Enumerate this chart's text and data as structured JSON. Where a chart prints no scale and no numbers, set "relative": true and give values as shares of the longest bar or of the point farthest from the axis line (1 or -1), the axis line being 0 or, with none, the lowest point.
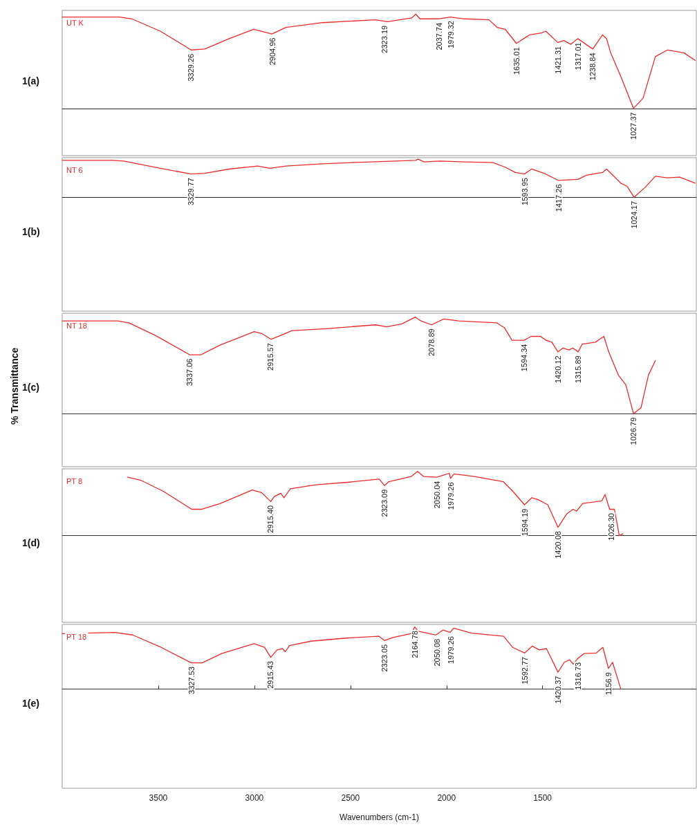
{
  "chart_data": [
    {
      "type": "line",
      "ylabel": "1(a)",
      "relative": true,
      "tick_labels": false,
      "marker": "none",
      "xlim": [
        4000,
        700
      ],
      "series": [
        {
          "name": "UT K",
          "color": "#ee2a2a",
          "x": [
            4000,
            3701,
            3638,
            3490,
            3329,
            3258,
            3131,
            3004,
            2909,
            2835,
            2645,
            2371,
            2307,
            2181,
            2160,
            2138,
            2043,
            1980,
            1906,
            1779,
            1737,
            1695,
            1636,
            1568,
            1505,
            1484,
            1421,
            1389,
            1353,
            1317,
            1239,
            1188,
            1167,
            1146,
            1093,
            1027,
            977,
            913,
            850,
            765,
            706
          ],
          "values": [
            0.97,
            0.97,
            0.95,
            0.82,
            0.62,
            0.63,
            0.74,
            0.84,
            0.79,
            0.86,
            0.91,
            0.94,
            0.92,
            0.96,
            1,
            0.95,
            0.95,
            0.97,
            0.95,
            0.94,
            0.86,
            0.84,
            0.69,
            0.78,
            0.8,
            0.82,
            0.7,
            0.72,
            0.68,
            0.74,
            0.63,
            0.78,
            0.74,
            0.59,
            0.34,
            0,
            0.11,
            0.55,
            0.62,
            0.59,
            0.51
          ]
        }
      ],
      "annotations": [
        {
          "text": "3329.26",
          "x": 3329.26,
          "y": 0.62
        },
        {
          "text": "2904.96",
          "x": 2904.96,
          "y": 0.79
        },
        {
          "text": "2323.19",
          "x": 2323.19,
          "y": 0.92
        },
        {
          "text": "2037.74",
          "x": 2037.74,
          "y": 0.95
        },
        {
          "text": "1979.32",
          "x": 1979.32,
          "y": 0.97
        },
        {
          "text": "1635.01",
          "x": 1635.01,
          "y": 0.69
        },
        {
          "text": "1421.31",
          "x": 1421.31,
          "y": 0.7
        },
        {
          "text": "1317.01",
          "x": 1317.01,
          "y": 0.74
        },
        {
          "text": "1238.84",
          "x": 1238.84,
          "y": 0.63
        },
        {
          "text": "1027.37",
          "x": 1027.37,
          "y": 0
        }
      ]
    },
    {
      "type": "line",
      "ylabel": "1(b)",
      "relative": true,
      "tick_labels": false,
      "marker": "none",
      "xlim": [
        4000,
        700
      ],
      "series": [
        {
          "name": "NT 6",
          "color": "#ee2a2a",
          "x": [
            4000,
            3743,
            3680,
            3490,
            3330,
            3258,
            3131,
            2983,
            2920,
            2835,
            2645,
            2392,
            2160,
            2148,
            2117,
            2033,
            1906,
            1758,
            1695,
            1642,
            1594,
            1557,
            1493,
            1417,
            1315,
            1272,
            1188,
            1167,
            1135,
            1093,
            1061,
            1024,
            966,
            913,
            850,
            787,
            706
          ],
          "values": [
            0.97,
            0.97,
            0.95,
            0.76,
            0.61,
            0.63,
            0.74,
            0.82,
            0.76,
            0.82,
            0.88,
            0.93,
            0.97,
            1,
            0.93,
            0.95,
            0.93,
            0.91,
            0.79,
            0.65,
            0.61,
            0.74,
            0.63,
            0.44,
            0.47,
            0.58,
            0.65,
            0.74,
            0.58,
            0.37,
            0.29,
            0,
            0.26,
            0.55,
            0.51,
            0.53,
            0.37
          ]
        }
      ],
      "annotations": [
        {
          "text": "3329.77",
          "x": 3329.77,
          "y": 0.61
        },
        {
          "text": "1593.95",
          "x": 1593.95,
          "y": 0.61
        },
        {
          "text": "1417.26",
          "x": 1417.26,
          "y": 0.44
        },
        {
          "text": "1024.17",
          "x": 1024.17,
          "y": 0
        }
      ]
    },
    {
      "type": "line",
      "ylabel": "1(c)",
      "relative": true,
      "tick_labels": false,
      "marker": "none",
      "xlim": [
        4000,
        700
      ],
      "series": [
        {
          "name": "NT 18",
          "color": "#ee2a2a",
          "x": [
            4000,
            3712,
            3653,
            3515,
            3337,
            3278,
            3179,
            3001,
            2962,
            2913,
            2863,
            2804,
            2626,
            2370,
            2311,
            2232,
            2163,
            2133,
            2078,
            2015,
            1936,
            1738,
            1699,
            1659,
            1596,
            1560,
            1511,
            1481,
            1452,
            1420,
            1393,
            1363,
            1343,
            1315,
            1294,
            1225,
            1181,
            1156,
            1106,
            1067,
            1027,
            988,
            949,
            913
          ],
          "values": [
            0.96,
            0.96,
            0.94,
            0.81,
            0.61,
            0.61,
            0.71,
            0.85,
            0.83,
            0.77,
            0.81,
            0.86,
            0.88,
            0.92,
            0.9,
            0.93,
            1,
            0.96,
            0.92,
            0.98,
            0.96,
            0.94,
            0.89,
            0.76,
            0.76,
            0.8,
            0.8,
            0.76,
            0.74,
            0.64,
            0.68,
            0.66,
            0.68,
            0.64,
            0.72,
            0.74,
            0.8,
            0.64,
            0.4,
            0.3,
            0,
            0.06,
            0.4,
            0.55
          ]
        }
      ],
      "annotations": [
        {
          "text": "3337.06",
          "x": 3337.06,
          "y": 0.61
        },
        {
          "text": "2915.57",
          "x": 2915.57,
          "y": 0.77
        },
        {
          "text": "2078.89",
          "x": 2078.89,
          "y": 0.92
        },
        {
          "text": "1594.34",
          "x": 1594.34,
          "y": 0.76
        },
        {
          "text": "1420.12",
          "x": 1420.12,
          "y": 0.64
        },
        {
          "text": "1315.89",
          "x": 1315.89,
          "y": 0.64
        },
        {
          "text": "1026.79",
          "x": 1026.79,
          "y": 0
        },
        "% Transmittance"
      ]
    },
    {
      "type": "line",
      "ylabel": "1(d)",
      "relative": true,
      "tick_labels": false,
      "marker": "none",
      "xlim": [
        4000,
        700
      ],
      "series": [
        {
          "name": "PT 8",
          "color": "#ee2a2a",
          "x": [
            3660,
            3590,
            3474,
            3326,
            3276,
            3177,
            3011,
            2962,
            2915,
            2896,
            2862,
            2846,
            2813,
            2681,
            2515,
            2350,
            2323,
            2300,
            2184,
            2151,
            2118,
            2050,
            2019,
            1986,
            1979,
            1961,
            1854,
            1705,
            1655,
            1594,
            1556,
            1523,
            1473,
            1420,
            1374,
            1341,
            1324,
            1291,
            1192,
            1175,
            1151,
            1126,
            1101,
            1082
          ],
          "values": [
            0.91,
            0.86,
            0.69,
            0.41,
            0.41,
            0.5,
            0.71,
            0.67,
            0.53,
            0.61,
            0.66,
            0.59,
            0.73,
            0.79,
            0.83,
            0.88,
            0.78,
            0.84,
            0.92,
            1,
            0.92,
            0.91,
            0.94,
            0.97,
            0.89,
            0.96,
            0.92,
            0.84,
            0.69,
            0.48,
            0.59,
            0.56,
            0.48,
            0.13,
            0.34,
            0.41,
            0.38,
            0.5,
            0.54,
            0.64,
            0.41,
            0.41,
            0,
            0.03
          ]
        }
      ],
      "annotations": [
        {
          "text": "2915.40",
          "x": 2915.4,
          "y": 0.53
        },
        {
          "text": "2323.09",
          "x": 2323.09,
          "y": 0.78
        },
        {
          "text": "2050.04",
          "x": 2050.04,
          "y": 0.91
        },
        {
          "text": "1979.26",
          "x": 1979.26,
          "y": 0.89
        },
        {
          "text": "1594.19",
          "x": 1594.19,
          "y": 0.48
        },
        {
          "text": "1420.08",
          "x": 1420.08,
          "y": 0.13
        },
        {
          "text": "1026.30",
          "x": 1142,
          "y": 0.41
        }
      ]
    },
    {
      "type": "line",
      "ylabel": "1(e)",
      "xlabel": "Wavenumbers (cm-1)",
      "relative": true,
      "tick_labels": "x",
      "marker": "none",
      "xlim": [
        4000,
        700
      ],
      "xticks": [
        3500,
        3000,
        2500,
        2000,
        1500
      ],
      "series": [
        {
          "name": "PT 18",
          "color": "#ee2a2a",
          "x": [
            4000,
            3727,
            3634,
            3485,
            3328,
            3272,
            3170,
            3002,
            2947,
            2915,
            2882,
            2854,
            2839,
            2817,
            2705,
            2520,
            2353,
            2323,
            2278,
            2185,
            2165,
            2148,
            2055,
            2018,
            1981,
            1963,
            1870,
            1703,
            1656,
            1593,
            1554,
            1517,
            1480,
            1420,
            1387,
            1359,
            1341,
            1317,
            1285,
            1220,
            1186,
            1157,
            1136,
            1093
          ],
          "values": [
            0.89,
            0.91,
            0.87,
            0.67,
            0.42,
            0.42,
            0.57,
            0.73,
            0.67,
            0.51,
            0.63,
            0.65,
            0.6,
            0.7,
            0.77,
            0.82,
            0.85,
            0.78,
            0.83,
            0.89,
            1,
            0.93,
            0.87,
            0.95,
            0.91,
            0.98,
            0.9,
            0.85,
            0.67,
            0.58,
            0.69,
            0.63,
            0.65,
            0.27,
            0.43,
            0.47,
            0.4,
            0.49,
            0.57,
            0.58,
            0.67,
            0.33,
            0.43,
            0
          ]
        }
      ],
      "annotations": [
        {
          "text": "3327.53",
          "x": 3327.53,
          "y": 0.42
        },
        {
          "text": "2915.43",
          "x": 2915.43,
          "y": 0.51
        },
        {
          "text": "2323.05",
          "x": 2323.05,
          "y": 0.78
        },
        {
          "text": "2164.78",
          "x": 2164.78,
          "y": 1
        },
        {
          "text": "2050.08",
          "x": 2050.08,
          "y": 0.87
        },
        {
          "text": "1979.26",
          "x": 1979.26,
          "y": 0.91
        },
        {
          "text": "1592.77",
          "x": 1592.77,
          "y": 0.58
        },
        {
          "text": "1420.37",
          "x": 1420.37,
          "y": 0.27
        },
        {
          "text": "1316.73",
          "x": 1316.73,
          "y": 0.49
        },
        {
          "text": "1156.9",
          "x": 1156.9,
          "y": 0.33
        }
      ]
    }
  ]
}
